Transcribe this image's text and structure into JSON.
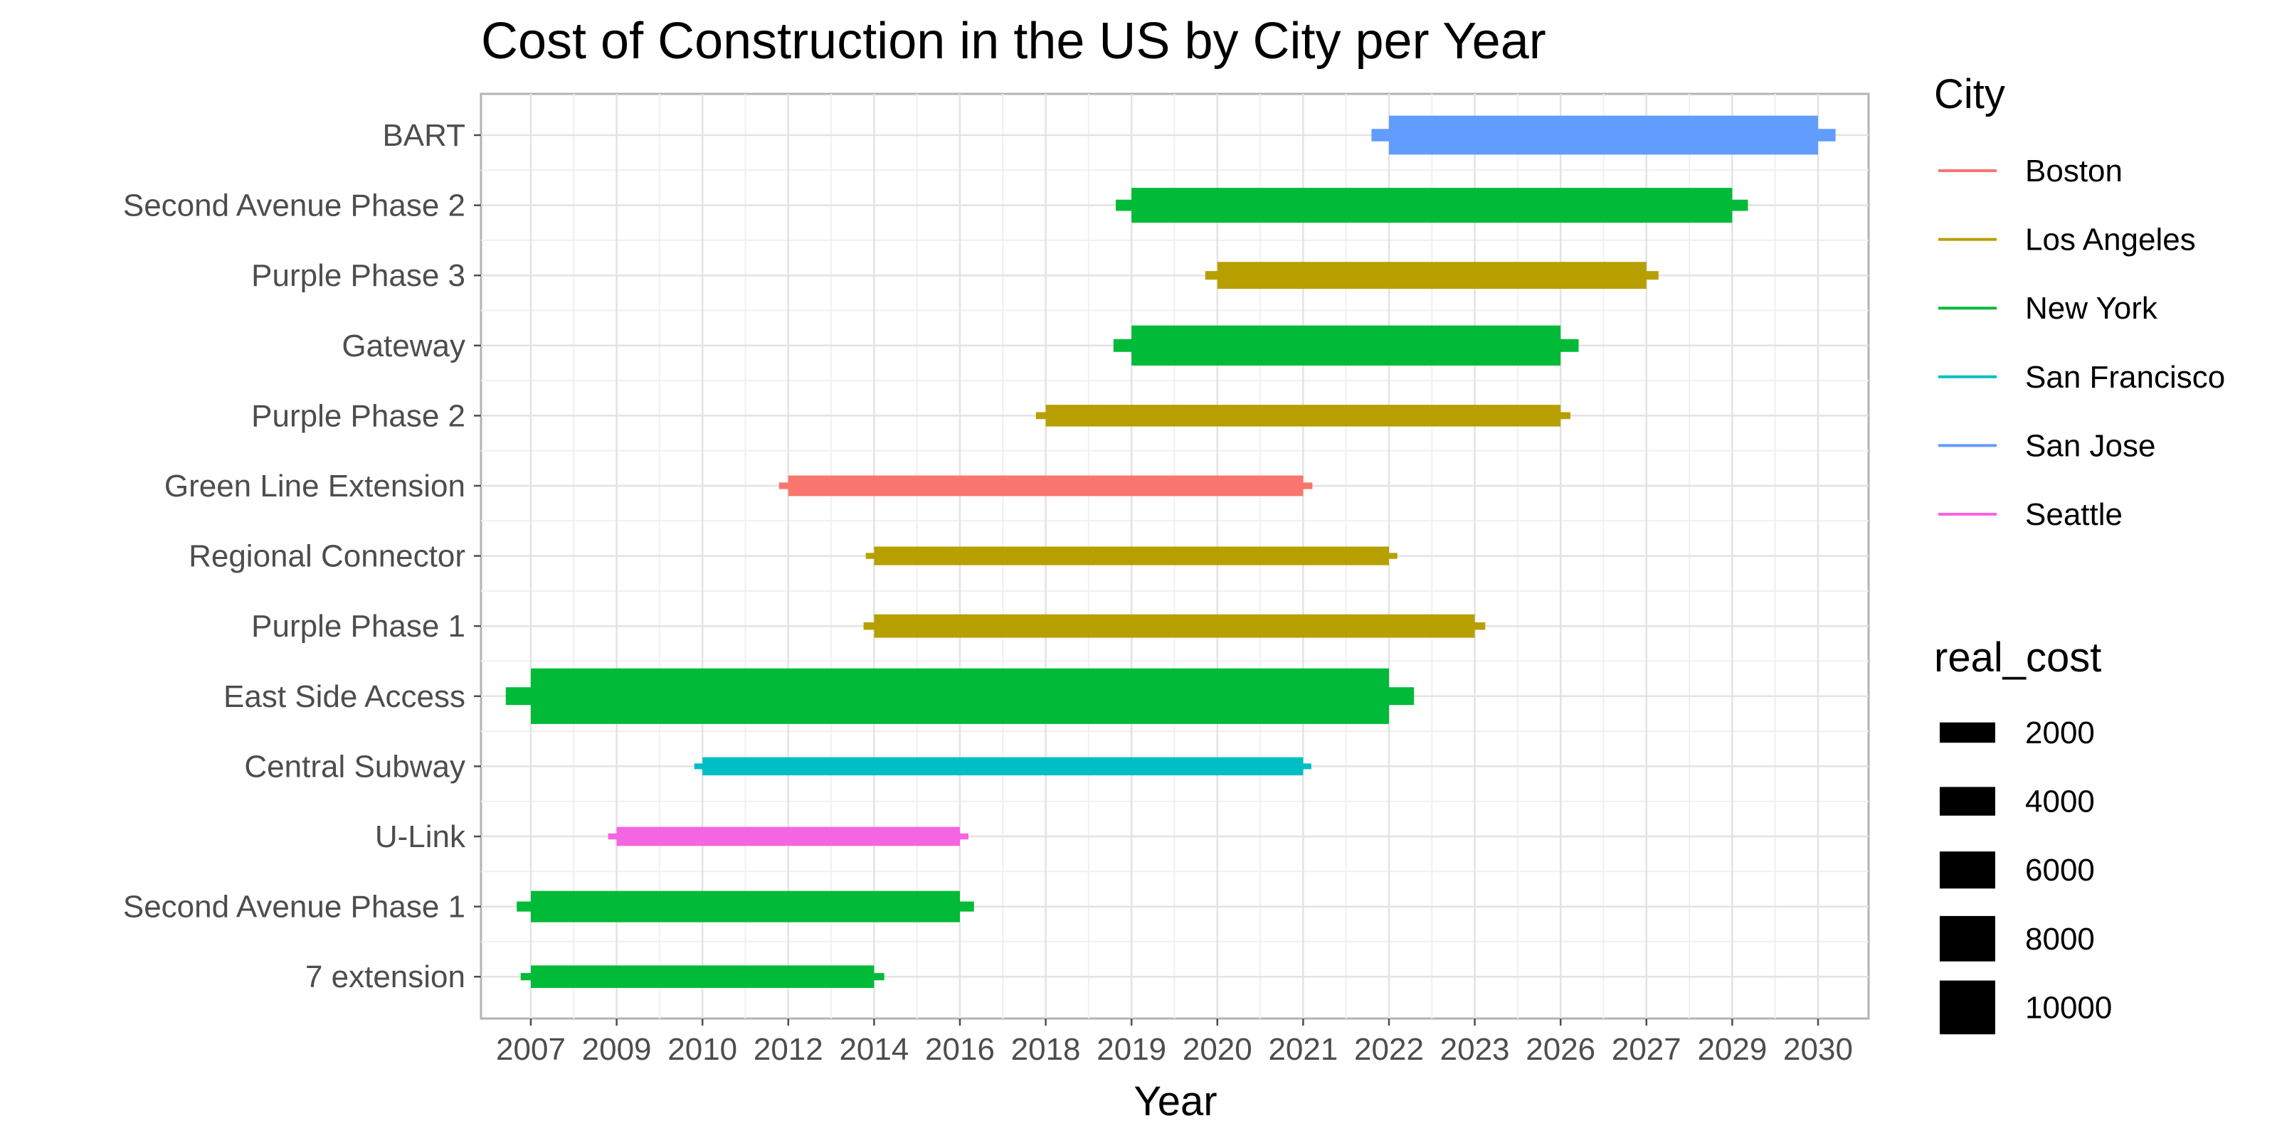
{
  "chart_data": {
    "type": "gantt",
    "title": "Cost of Construction in the US by City per Year",
    "xlabel": "Year",
    "ylabel": "",
    "x_ticks": [
      "2007",
      "2009",
      "2010",
      "2012",
      "2014",
      "2016",
      "2018",
      "2019",
      "2020",
      "2021",
      "2022",
      "2023",
      "2026",
      "2027",
      "2029",
      "2030"
    ],
    "color_legend": {
      "title": "City",
      "items": [
        {
          "label": "Boston",
          "color": "#F8766D"
        },
        {
          "label": "Los Angeles",
          "color": "#B79F00"
        },
        {
          "label": "New York",
          "color": "#00BA38"
        },
        {
          "label": "San Francisco",
          "color": "#00BFC4"
        },
        {
          "label": "San Jose",
          "color": "#619CFF"
        },
        {
          "label": "Seattle",
          "color": "#F564E3"
        }
      ]
    },
    "size_legend": {
      "title": "real_cost",
      "items": [
        {
          "label": "2000",
          "value": 2000
        },
        {
          "label": "4000",
          "value": 4000
        },
        {
          "label": "6000",
          "value": 6000
        },
        {
          "label": "8000",
          "value": 8000
        },
        {
          "label": "10000",
          "value": 10000
        }
      ]
    },
    "projects": [
      {
        "name": "BART",
        "city": "San Jose",
        "start": "2022",
        "end": "2030",
        "real_cost": 6900
      },
      {
        "name": "Second Avenue Phase 2",
        "city": "New York",
        "start": "2019",
        "end": "2029",
        "real_cost": 5900
      },
      {
        "name": "Purple Phase 3",
        "city": "Los Angeles",
        "start": "2020",
        "end": "2027",
        "real_cost": 3900
      },
      {
        "name": "Gateway",
        "city": "New York",
        "start": "2019",
        "end": "2026",
        "real_cost": 7200
      },
      {
        "name": "Purple Phase 2",
        "city": "Los Angeles",
        "start": "2018",
        "end": "2026",
        "real_cost": 2600
      },
      {
        "name": "Green Line Extension",
        "city": "Boston",
        "start": "2012",
        "end": "2021",
        "real_cost": 2300
      },
      {
        "name": "Regional Connector",
        "city": "Los Angeles",
        "start": "2014",
        "end": "2022",
        "real_cost": 1800
      },
      {
        "name": "Purple Phase 1",
        "city": "Los Angeles",
        "start": "2014",
        "end": "2023",
        "real_cost": 3000
      },
      {
        "name": "East Side Access",
        "city": "New York",
        "start": "2007",
        "end": "2022",
        "real_cost": 11100
      },
      {
        "name": "Central Subway",
        "city": "San Francisco",
        "start": "2010",
        "end": "2021",
        "real_cost": 1700
      },
      {
        "name": "U-Link",
        "city": "Seattle",
        "start": "2009",
        "end": "2016",
        "real_cost": 1900
      },
      {
        "name": "Second Avenue Phase 1",
        "city": "New York",
        "start": "2007",
        "end": "2016",
        "real_cost": 5000
      },
      {
        "name": "7 extension",
        "city": "New York",
        "start": "2007",
        "end": "2014",
        "real_cost": 2800
      }
    ]
  }
}
